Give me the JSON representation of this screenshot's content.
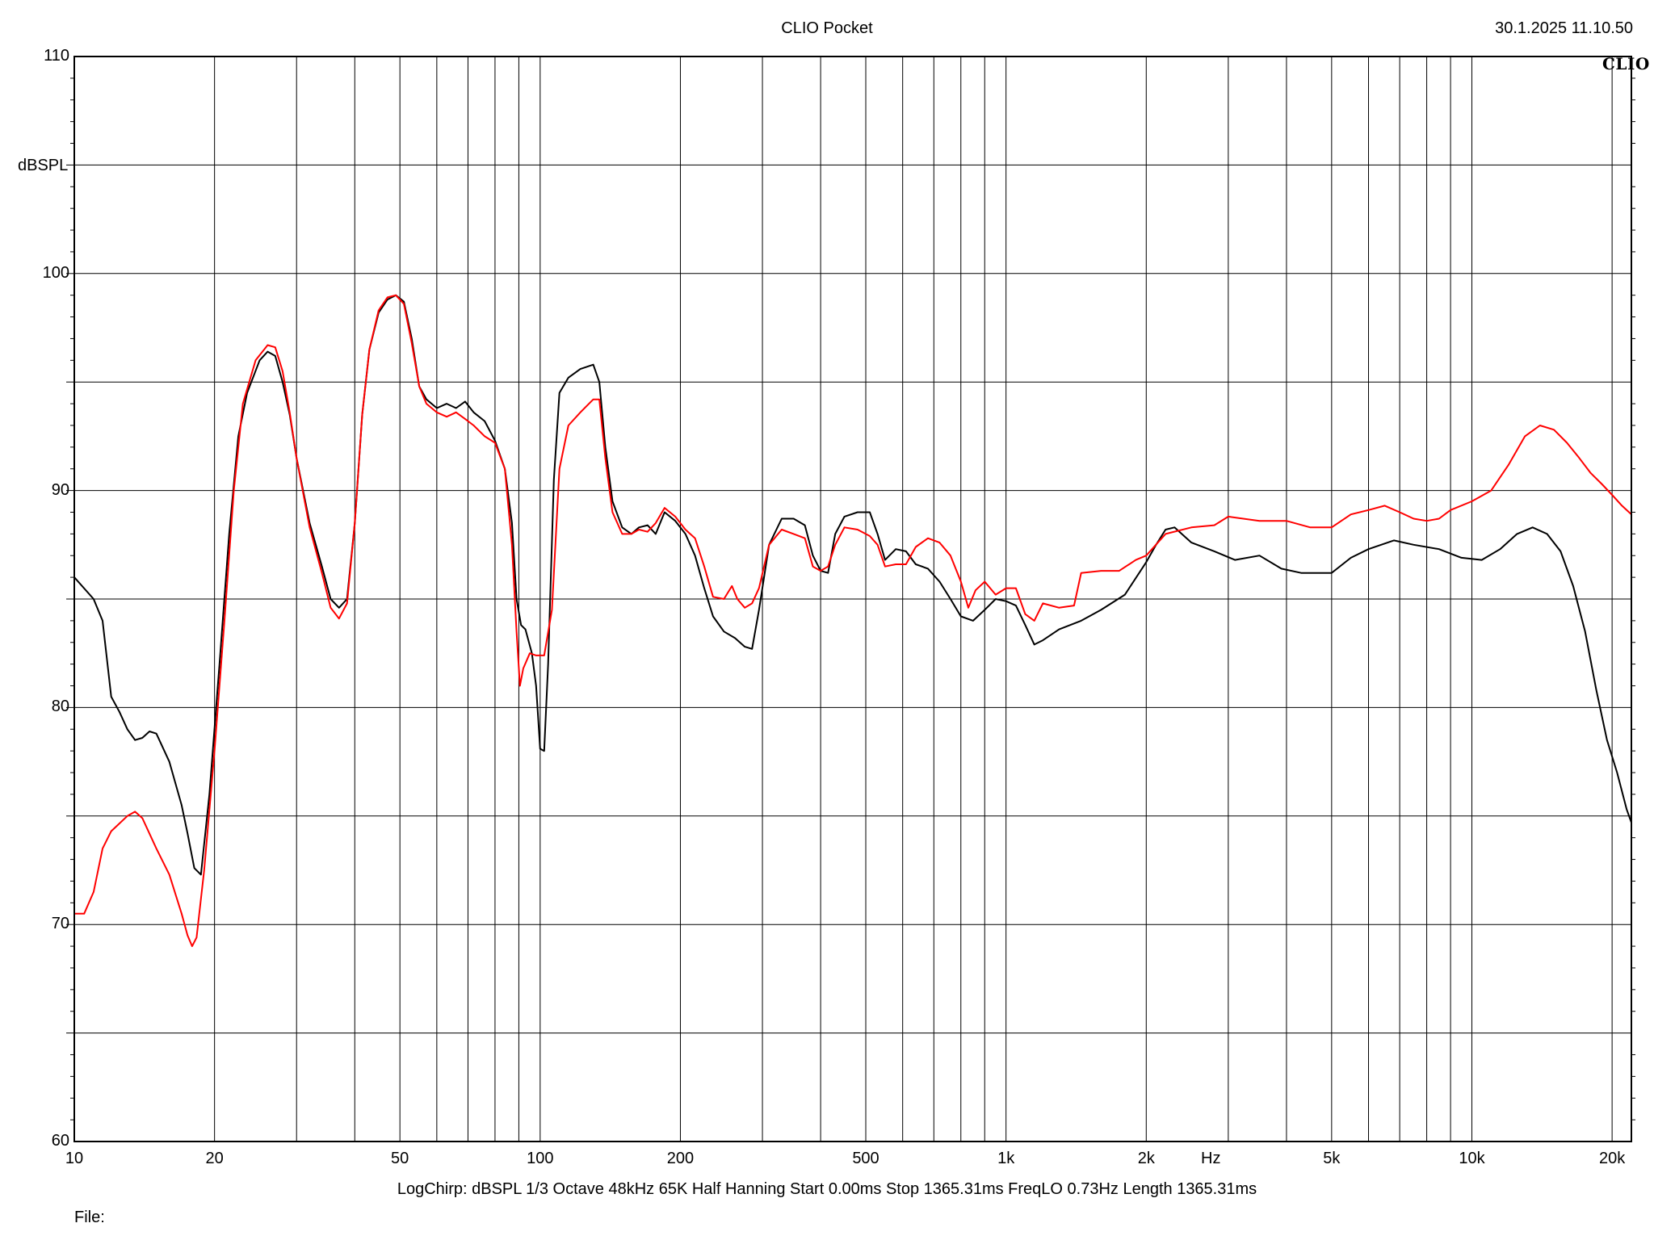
{
  "header": {
    "title": "CLIO Pocket",
    "timestamp": "30.1.2025 11.10.50",
    "brand": "CLIO"
  },
  "footer": {
    "params": "LogChirp:  dBSPL   1/3 Octave   48kHz   65K   Half Hanning   Start 0.00ms    Stop 1365.31ms    FreqLO 0.73Hz    Length 1365.31ms",
    "file_label": "File:"
  },
  "colors": {
    "series_black": "#000000",
    "series_red": "#ff0000",
    "grid": "#000000",
    "background": "#ffffff"
  },
  "chart_data": {
    "type": "line",
    "title": "CLIO Pocket",
    "ylabel": "dBSPL",
    "xunit": "Hz",
    "xscale": "log",
    "xlim": [
      10,
      22000
    ],
    "ylim": [
      60,
      110
    ],
    "y_ticks": [
      60,
      70,
      80,
      90,
      100,
      110
    ],
    "y_tick_labels": [
      "60",
      "70",
      "80",
      "90",
      "100",
      "110"
    ],
    "x_ticks": [
      10,
      20,
      50,
      100,
      200,
      500,
      1000,
      2000,
      5000,
      10000,
      20000
    ],
    "x_tick_labels": [
      "10",
      "20",
      "50",
      "100",
      "200",
      "500",
      "1k",
      "2k",
      "5k",
      "10k",
      "20k"
    ],
    "grid": true,
    "series": [
      {
        "color": "#000000",
        "points": [
          [
            10,
            86.0
          ],
          [
            11,
            85.0
          ],
          [
            11.5,
            84.0
          ],
          [
            12,
            80.5
          ],
          [
            12.5,
            79.8
          ],
          [
            13,
            79.0
          ],
          [
            13.5,
            78.5
          ],
          [
            14,
            78.6
          ],
          [
            14.5,
            78.9
          ],
          [
            15,
            78.8
          ],
          [
            16,
            77.5
          ],
          [
            17,
            75.5
          ],
          [
            17.5,
            74.2
          ],
          [
            18.1,
            72.6
          ],
          [
            18.7,
            72.3
          ],
          [
            19.5,
            76
          ],
          [
            20.5,
            82
          ],
          [
            21.5,
            88
          ],
          [
            22.5,
            92.5
          ],
          [
            23.5,
            94.5
          ],
          [
            25,
            96
          ],
          [
            26,
            96.4
          ],
          [
            27,
            96.2
          ],
          [
            28,
            95
          ],
          [
            29,
            93.5
          ],
          [
            30,
            91.5
          ],
          [
            32,
            88.5
          ],
          [
            34,
            86.5
          ],
          [
            35.5,
            85
          ],
          [
            37,
            84.6
          ],
          [
            38.5,
            85
          ],
          [
            40,
            88.5
          ],
          [
            41.5,
            93.5
          ],
          [
            43,
            96.5
          ],
          [
            45,
            98.2
          ],
          [
            47,
            98.8
          ],
          [
            49,
            99.0
          ],
          [
            51,
            98.7
          ],
          [
            53,
            97
          ],
          [
            55,
            94.8
          ],
          [
            57,
            94.2
          ],
          [
            60,
            93.8
          ],
          [
            63,
            94.0
          ],
          [
            66,
            93.8
          ],
          [
            69,
            94.1
          ],
          [
            72,
            93.6
          ],
          [
            76,
            93.2
          ],
          [
            80,
            92.3
          ],
          [
            84,
            91
          ],
          [
            87,
            88.5
          ],
          [
            89,
            85
          ],
          [
            91,
            83.8
          ],
          [
            93,
            83.6
          ],
          [
            96,
            82.5
          ],
          [
            98,
            81
          ],
          [
            100,
            78.1
          ],
          [
            102,
            78
          ],
          [
            104,
            82
          ],
          [
            107,
            90.5
          ],
          [
            110,
            94.5
          ],
          [
            115,
            95.2
          ],
          [
            122,
            95.6
          ],
          [
            130,
            95.8
          ],
          [
            134,
            95
          ],
          [
            138,
            92
          ],
          [
            143,
            89.5
          ],
          [
            150,
            88.3
          ],
          [
            157,
            88
          ],
          [
            163,
            88.3
          ],
          [
            170,
            88.4
          ],
          [
            177,
            88
          ],
          [
            185,
            89
          ],
          [
            195,
            88.6
          ],
          [
            205,
            88
          ],
          [
            215,
            87
          ],
          [
            225,
            85.5
          ],
          [
            235,
            84.2
          ],
          [
            248,
            83.5
          ],
          [
            262,
            83.2
          ],
          [
            275,
            82.8
          ],
          [
            285,
            82.7
          ],
          [
            295,
            84.5
          ],
          [
            310,
            87.5
          ],
          [
            330,
            88.7
          ],
          [
            350,
            88.7
          ],
          [
            370,
            88.4
          ],
          [
            385,
            87
          ],
          [
            400,
            86.3
          ],
          [
            415,
            86.2
          ],
          [
            430,
            88
          ],
          [
            450,
            88.8
          ],
          [
            480,
            89.0
          ],
          [
            510,
            89.0
          ],
          [
            530,
            88
          ],
          [
            550,
            86.8
          ],
          [
            580,
            87.3
          ],
          [
            610,
            87.2
          ],
          [
            640,
            86.6
          ],
          [
            680,
            86.4
          ],
          [
            720,
            85.8
          ],
          [
            760,
            85
          ],
          [
            800,
            84.2
          ],
          [
            850,
            84.0
          ],
          [
            900,
            84.5
          ],
          [
            950,
            85.0
          ],
          [
            1000,
            84.9
          ],
          [
            1050,
            84.7
          ],
          [
            1100,
            83.8
          ],
          [
            1150,
            82.9
          ],
          [
            1200,
            83.1
          ],
          [
            1300,
            83.6
          ],
          [
            1450,
            84.0
          ],
          [
            1600,
            84.5
          ],
          [
            1800,
            85.2
          ],
          [
            2000,
            86.7
          ],
          [
            2100,
            87.5
          ],
          [
            2200,
            88.2
          ],
          [
            2300,
            88.3
          ],
          [
            2500,
            87.6
          ],
          [
            2800,
            87.2
          ],
          [
            3100,
            86.8
          ],
          [
            3500,
            87.0
          ],
          [
            3900,
            86.4
          ],
          [
            4300,
            86.2
          ],
          [
            4700,
            86.2
          ],
          [
            5000,
            86.2
          ],
          [
            5500,
            86.9
          ],
          [
            6000,
            87.3
          ],
          [
            6800,
            87.7
          ],
          [
            7500,
            87.5
          ],
          [
            8500,
            87.3
          ],
          [
            9500,
            86.9
          ],
          [
            10500,
            86.8
          ],
          [
            11500,
            87.3
          ],
          [
            12500,
            88.0
          ],
          [
            13500,
            88.3
          ],
          [
            14500,
            88.0
          ],
          [
            15500,
            87.2
          ],
          [
            16500,
            85.6
          ],
          [
            17500,
            83.5
          ],
          [
            18500,
            80.8
          ],
          [
            19500,
            78.5
          ],
          [
            20500,
            77.0
          ],
          [
            21500,
            75.3
          ],
          [
            22000,
            74.7
          ]
        ]
      },
      {
        "color": "#ff0000",
        "points": [
          [
            10,
            70.5
          ],
          [
            10.5,
            70.5
          ],
          [
            11,
            71.5
          ],
          [
            11.5,
            73.5
          ],
          [
            12,
            74.3
          ],
          [
            13,
            75.0
          ],
          [
            13.5,
            75.2
          ],
          [
            14,
            74.9
          ],
          [
            15,
            73.5
          ],
          [
            16,
            72.3
          ],
          [
            17,
            70.5
          ],
          [
            17.5,
            69.5
          ],
          [
            17.9,
            69.0
          ],
          [
            18.3,
            69.4
          ],
          [
            19,
            72.5
          ],
          [
            20,
            78
          ],
          [
            21,
            84
          ],
          [
            22,
            90
          ],
          [
            23,
            94
          ],
          [
            24.5,
            96
          ],
          [
            26,
            96.7
          ],
          [
            27,
            96.6
          ],
          [
            28,
            95.5
          ],
          [
            29,
            93.6
          ],
          [
            30,
            91.5
          ],
          [
            32,
            88.3
          ],
          [
            34,
            86.2
          ],
          [
            35.5,
            84.6
          ],
          [
            37,
            84.1
          ],
          [
            38.5,
            84.8
          ],
          [
            40,
            88.5
          ],
          [
            41.5,
            93.5
          ],
          [
            43,
            96.5
          ],
          [
            45,
            98.3
          ],
          [
            47,
            98.9
          ],
          [
            49,
            99.0
          ],
          [
            51,
            98.6
          ],
          [
            53,
            96.8
          ],
          [
            55,
            94.8
          ],
          [
            57,
            94.0
          ],
          [
            60,
            93.6
          ],
          [
            63,
            93.4
          ],
          [
            66,
            93.6
          ],
          [
            69,
            93.3
          ],
          [
            72,
            93.0
          ],
          [
            76,
            92.5
          ],
          [
            80,
            92.2
          ],
          [
            84,
            91.0
          ],
          [
            87,
            87.5
          ],
          [
            89,
            83.5
          ],
          [
            90.5,
            81.0
          ],
          [
            92,
            81.8
          ],
          [
            95,
            82.5
          ],
          [
            98,
            82.4
          ],
          [
            102,
            82.4
          ],
          [
            106,
            84.5
          ],
          [
            110,
            91
          ],
          [
            115,
            93.0
          ],
          [
            122,
            93.6
          ],
          [
            130,
            94.2
          ],
          [
            134,
            94.2
          ],
          [
            138,
            91.5
          ],
          [
            143,
            89.0
          ],
          [
            150,
            88.0
          ],
          [
            157,
            88.0
          ],
          [
            163,
            88.2
          ],
          [
            170,
            88.1
          ],
          [
            177,
            88.5
          ],
          [
            185,
            89.2
          ],
          [
            195,
            88.8
          ],
          [
            205,
            88.2
          ],
          [
            215,
            87.8
          ],
          [
            225,
            86.5
          ],
          [
            235,
            85.1
          ],
          [
            248,
            85.0
          ],
          [
            258,
            85.6
          ],
          [
            265,
            85.0
          ],
          [
            275,
            84.6
          ],
          [
            285,
            84.8
          ],
          [
            295,
            85.5
          ],
          [
            310,
            87.5
          ],
          [
            330,
            88.2
          ],
          [
            350,
            88.0
          ],
          [
            370,
            87.8
          ],
          [
            385,
            86.5
          ],
          [
            400,
            86.3
          ],
          [
            415,
            86.5
          ],
          [
            430,
            87.5
          ],
          [
            450,
            88.3
          ],
          [
            480,
            88.2
          ],
          [
            510,
            87.9
          ],
          [
            530,
            87.5
          ],
          [
            550,
            86.5
          ],
          [
            580,
            86.6
          ],
          [
            610,
            86.6
          ],
          [
            640,
            87.4
          ],
          [
            680,
            87.8
          ],
          [
            720,
            87.6
          ],
          [
            760,
            87.0
          ],
          [
            800,
            85.8
          ],
          [
            830,
            84.6
          ],
          [
            860,
            85.4
          ],
          [
            900,
            85.8
          ],
          [
            950,
            85.2
          ],
          [
            1000,
            85.5
          ],
          [
            1050,
            85.5
          ],
          [
            1100,
            84.3
          ],
          [
            1150,
            84.0
          ],
          [
            1200,
            84.8
          ],
          [
            1300,
            84.6
          ],
          [
            1400,
            84.7
          ],
          [
            1450,
            86.2
          ],
          [
            1600,
            86.3
          ],
          [
            1750,
            86.3
          ],
          [
            1900,
            86.8
          ],
          [
            2000,
            87.0
          ],
          [
            2200,
            88.0
          ],
          [
            2500,
            88.3
          ],
          [
            2800,
            88.4
          ],
          [
            3000,
            88.8
          ],
          [
            3500,
            88.6
          ],
          [
            4000,
            88.6
          ],
          [
            4500,
            88.3
          ],
          [
            5000,
            88.3
          ],
          [
            5500,
            88.9
          ],
          [
            6000,
            89.1
          ],
          [
            6500,
            89.3
          ],
          [
            7000,
            89.0
          ],
          [
            7500,
            88.7
          ],
          [
            8000,
            88.6
          ],
          [
            8500,
            88.7
          ],
          [
            9000,
            89.1
          ],
          [
            10000,
            89.5
          ],
          [
            11000,
            90.0
          ],
          [
            12000,
            91.2
          ],
          [
            13000,
            92.5
          ],
          [
            14000,
            93.0
          ],
          [
            15000,
            92.8
          ],
          [
            16000,
            92.2
          ],
          [
            17000,
            91.5
          ],
          [
            18000,
            90.8
          ],
          [
            19000,
            90.3
          ],
          [
            20000,
            89.8
          ],
          [
            21000,
            89.3
          ],
          [
            22000,
            88.9
          ]
        ]
      }
    ]
  }
}
